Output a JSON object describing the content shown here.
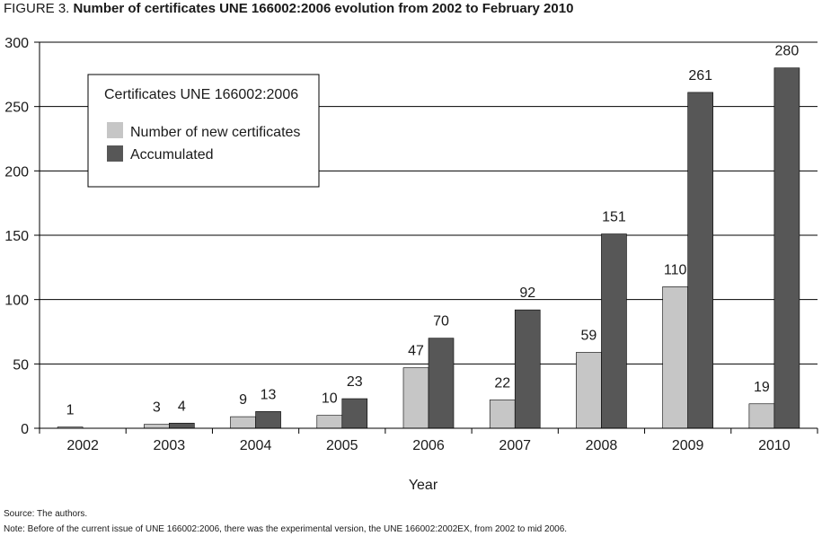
{
  "figure": {
    "label": "FIGURE 3.",
    "heading": "Number of certificates UNE 166002:2006 evolution from 2002 to February 2010"
  },
  "chart_data": {
    "type": "bar",
    "title": "Number of certificates UNE 166002:2006 evolution from 2002 to February 2010",
    "xlabel": "Year",
    "ylabel": "",
    "categories": [
      "2002",
      "2003",
      "2004",
      "2005",
      "2006",
      "2007",
      "2008",
      "2009",
      "2010"
    ],
    "series": [
      {
        "name": "Number of new certificates",
        "values": [
          1,
          3,
          9,
          10,
          47,
          22,
          59,
          110,
          19
        ],
        "color": "#c6c6c6"
      },
      {
        "name": "Accumulated",
        "values": [
          null,
          4,
          13,
          23,
          70,
          92,
          151,
          261,
          280
        ],
        "color": "#575757"
      }
    ],
    "ylim": [
      0,
      300
    ],
    "yticks": [
      "0",
      "50",
      "100",
      "150",
      "200",
      "250",
      "300"
    ],
    "grid": "horizontal",
    "legend": {
      "title": "Certificates UNE 166002:2006",
      "placement": "top-left"
    },
    "data_labels": true
  },
  "footnotes": {
    "source": "Source: The authors.",
    "note": "Note: Before of the current issue of UNE 166002:2006, there was the experimental version, the UNE 166002:2002EX, from 2002 to mid 2006."
  },
  "colors": {
    "gridline": "#000000",
    "axis": "#000000"
  }
}
